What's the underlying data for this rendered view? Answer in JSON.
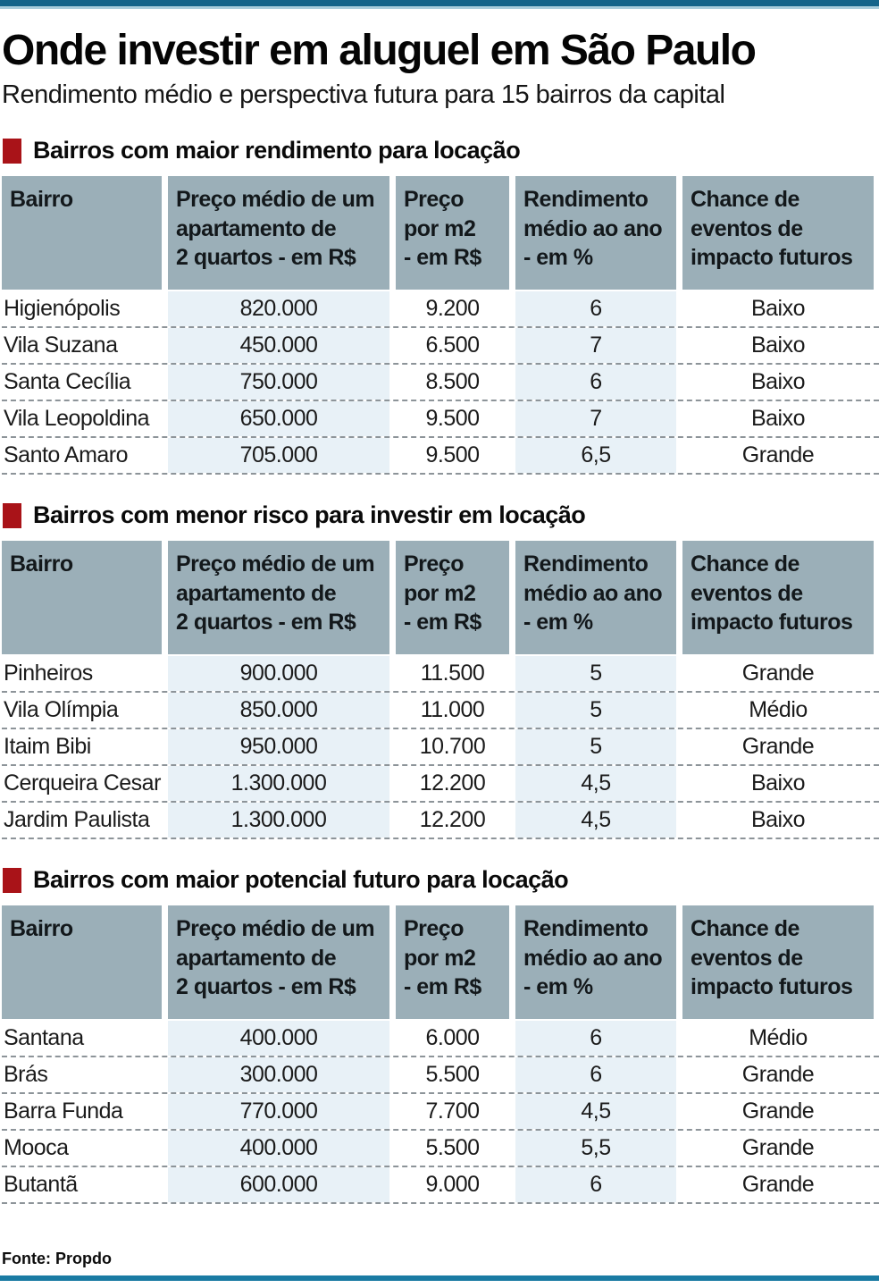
{
  "header": {
    "title": "Onde investir em aluguel em São Paulo",
    "subtitle": "Rendimento médio e perspectiva futura para 15 bairros da capital"
  },
  "footer": {
    "source": "Fonte: Propdo"
  },
  "colors": {
    "top_bar": "#15648a",
    "top_bar_edge": "#a9cddc",
    "bottom_bar": "#1a7ba3",
    "section_bullet": "#a91318",
    "table_header_bg": "#9bafb8",
    "highlight_column_bg": "#e8f1f7",
    "row_divider": "#8d9499",
    "text": "#111111"
  },
  "chart_data": [
    {
      "type": "table",
      "title": "Bairros com maior rendimento para locação",
      "columns": [
        "Bairro",
        "Preço médio de um\napartamento de\n2 quartos - em R$",
        "Preço\npor m2\n- em R$",
        "Rendimento\nmédio ao ano\n- em %",
        "Chance de\neventos de\nimpacto futuros"
      ],
      "rows": [
        [
          "Higienópolis",
          "820.000",
          "9.200",
          "6",
          "Baixo"
        ],
        [
          "Vila Suzana",
          "450.000",
          "6.500",
          "7",
          "Baixo"
        ],
        [
          "Santa Cecília",
          "750.000",
          "8.500",
          "6",
          "Baixo"
        ],
        [
          "Vila Leopoldina",
          "650.000",
          "9.500",
          "7",
          "Baixo"
        ],
        [
          "Santo Amaro",
          "705.000",
          "9.500",
          "6,5",
          "Grande"
        ]
      ]
    },
    {
      "type": "table",
      "title": "Bairros com menor risco para investir em locação",
      "columns": [
        "Bairro",
        "Preço médio de um\napartamento de\n2 quartos - em R$",
        "Preço\npor m2\n- em R$",
        "Rendimento\nmédio ao ano\n- em %",
        "Chance de\neventos de\nimpacto futuros"
      ],
      "rows": [
        [
          "Pinheiros",
          "900.000",
          "11.500",
          "5",
          "Grande"
        ],
        [
          "Vila Olímpia",
          "850.000",
          "11.000",
          "5",
          "Médio"
        ],
        [
          "Itaim Bibi",
          "950.000",
          "10.700",
          "5",
          "Grande"
        ],
        [
          "Cerqueira Cesar",
          "1.300.000",
          "12.200",
          "4,5",
          "Baixo"
        ],
        [
          "Jardim Paulista",
          "1.300.000",
          "12.200",
          "4,5",
          "Baixo"
        ]
      ]
    },
    {
      "type": "table",
      "title": "Bairros com maior potencial futuro para locação",
      "columns": [
        "Bairro",
        "Preço médio de um\napartamento de\n2 quartos - em R$",
        "Preço\npor m2\n- em R$",
        "Rendimento\nmédio ao ano\n- em %",
        "Chance de\neventos de\nimpacto futuros"
      ],
      "rows": [
        [
          "Santana",
          "400.000",
          "6.000",
          "6",
          "Médio"
        ],
        [
          "Brás",
          "300.000",
          "5.500",
          "6",
          "Grande"
        ],
        [
          "Barra Funda",
          "770.000",
          "7.700",
          "4,5",
          "Grande"
        ],
        [
          "Mooca",
          "400.000",
          "5.500",
          "5,5",
          "Grande"
        ],
        [
          "Butantã",
          "600.000",
          "9.000",
          "6",
          "Grande"
        ]
      ]
    }
  ]
}
